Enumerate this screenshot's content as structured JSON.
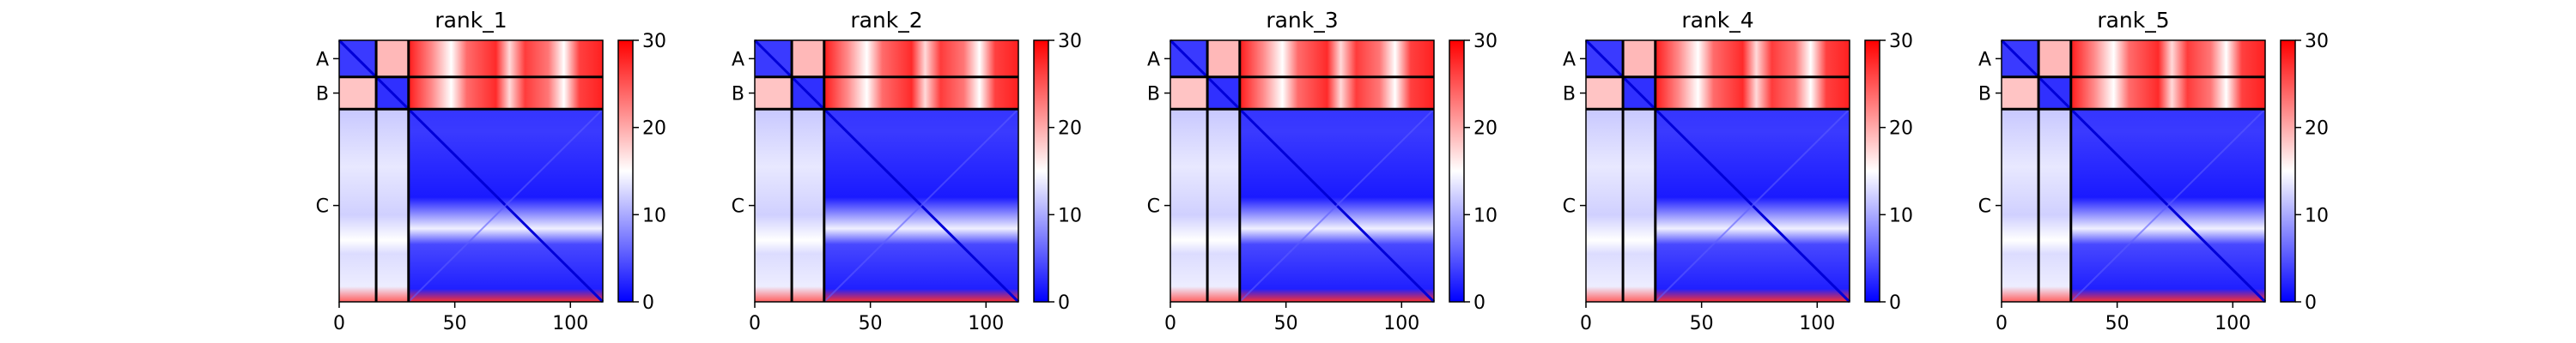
{
  "colorbar": {
    "ticks": [
      0,
      10,
      20,
      30
    ],
    "tick_labels": [
      "0",
      "10",
      "20",
      "30"
    ],
    "colors": [
      "#0000ff",
      "#ffffff",
      "#ff0000"
    ]
  },
  "chart_data": [
    {
      "type": "heatmap",
      "title": "rank_1",
      "xlabel": "",
      "ylabel": "",
      "x_ticks": [
        0,
        50,
        100
      ],
      "x_tick_labels": [
        "0",
        "50",
        "100"
      ],
      "xlim": [
        0,
        114
      ],
      "chains": [
        {
          "label": "A",
          "start": 0,
          "end": 16
        },
        {
          "label": "B",
          "start": 16,
          "end": 30
        },
        {
          "label": "C",
          "start": 30,
          "end": 114
        }
      ],
      "value_range": [
        0,
        30
      ],
      "grid": false
    },
    {
      "type": "heatmap",
      "title": "rank_2",
      "xlabel": "",
      "ylabel": "",
      "x_ticks": [
        0,
        50,
        100
      ],
      "x_tick_labels": [
        "0",
        "50",
        "100"
      ],
      "xlim": [
        0,
        114
      ],
      "chains": [
        {
          "label": "A",
          "start": 0,
          "end": 16
        },
        {
          "label": "B",
          "start": 16,
          "end": 30
        },
        {
          "label": "C",
          "start": 30,
          "end": 114
        }
      ],
      "value_range": [
        0,
        30
      ],
      "grid": false
    },
    {
      "type": "heatmap",
      "title": "rank_3",
      "xlabel": "",
      "ylabel": "",
      "x_ticks": [
        0,
        50,
        100
      ],
      "x_tick_labels": [
        "0",
        "50",
        "100"
      ],
      "xlim": [
        0,
        114
      ],
      "chains": [
        {
          "label": "A",
          "start": 0,
          "end": 16
        },
        {
          "label": "B",
          "start": 16,
          "end": 30
        },
        {
          "label": "C",
          "start": 30,
          "end": 114
        }
      ],
      "value_range": [
        0,
        30
      ],
      "grid": false
    },
    {
      "type": "heatmap",
      "title": "rank_4",
      "xlabel": "",
      "ylabel": "",
      "x_ticks": [
        0,
        50,
        100
      ],
      "x_tick_labels": [
        "0",
        "50",
        "100"
      ],
      "xlim": [
        0,
        114
      ],
      "chains": [
        {
          "label": "A",
          "start": 0,
          "end": 16
        },
        {
          "label": "B",
          "start": 16,
          "end": 30
        },
        {
          "label": "C",
          "start": 30,
          "end": 114
        }
      ],
      "value_range": [
        0,
        30
      ],
      "grid": false
    },
    {
      "type": "heatmap",
      "title": "rank_5",
      "xlabel": "",
      "ylabel": "",
      "x_ticks": [
        0,
        50,
        100
      ],
      "x_tick_labels": [
        "0",
        "50",
        "100"
      ],
      "xlim": [
        0,
        114
      ],
      "chains": [
        {
          "label": "A",
          "start": 0,
          "end": 16
        },
        {
          "label": "B",
          "start": 16,
          "end": 30
        },
        {
          "label": "C",
          "start": 30,
          "end": 114
        }
      ],
      "value_range": [
        0,
        30
      ],
      "grid": false
    }
  ]
}
